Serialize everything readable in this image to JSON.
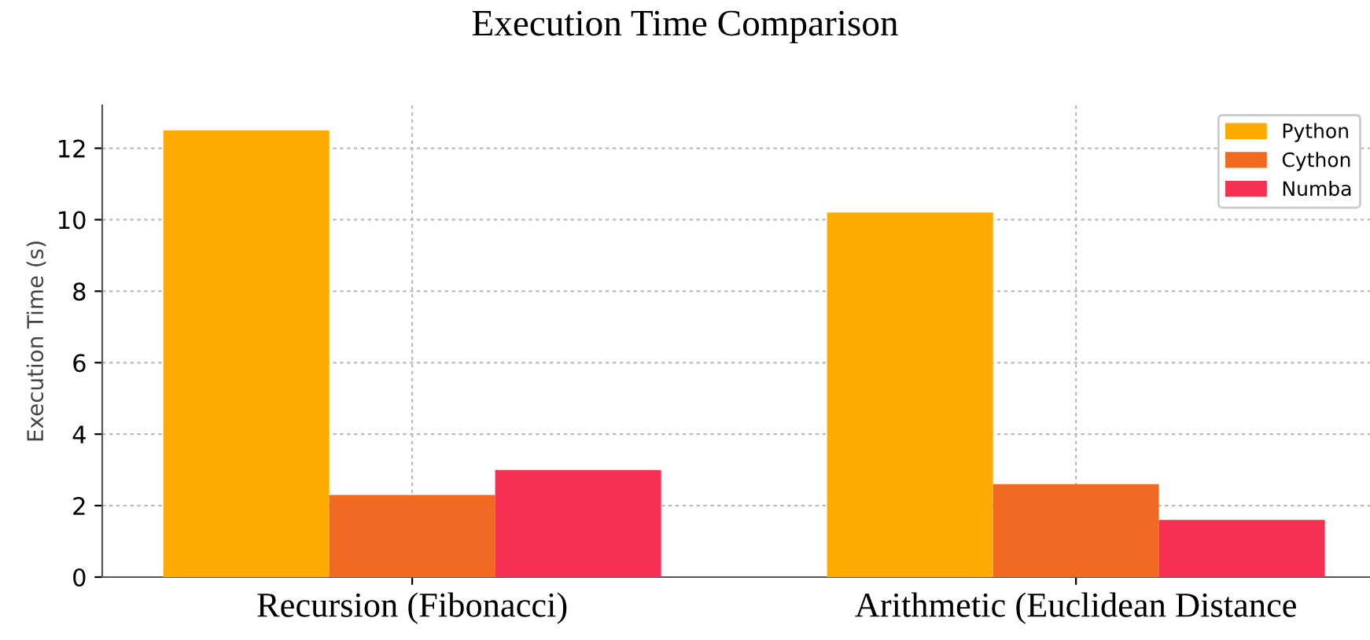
{
  "chart_data": {
    "type": "bar",
    "title": "Execution Time Comparison",
    "ylabel": "Execution Time (s)",
    "categories": [
      "Recursion (Fibonacci)",
      "Arithmetic (Euclidean Distance"
    ],
    "series": [
      {
        "name": "Python",
        "color": "#fdab00",
        "values": [
          12.5,
          10.2
        ]
      },
      {
        "name": "Cython",
        "color": "#f06a22",
        "values": [
          2.3,
          2.6
        ]
      },
      {
        "name": "Numba",
        "color": "#f53052",
        "values": [
          3.0,
          1.6
        ]
      }
    ],
    "ylim": [
      0,
      13.2
    ],
    "yticks": [
      0,
      2,
      4,
      6,
      8,
      10,
      12
    ],
    "grid": true,
    "legend": "top right"
  }
}
